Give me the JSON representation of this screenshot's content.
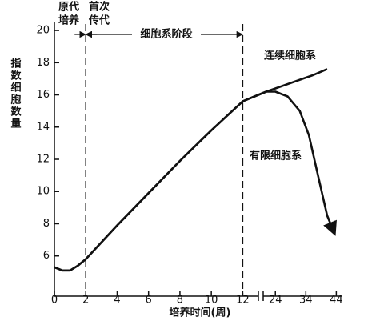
{
  "chart_data": {
    "type": "line",
    "y_label": "指数细胞数量",
    "x_label": "培养时间(周)",
    "ylim": [
      3.5,
      20.5
    ],
    "yticks": [
      6,
      8,
      10,
      12,
      14,
      16,
      18,
      20
    ],
    "x_segments": [
      {
        "xlim": [
          0,
          13
        ],
        "xticks": [
          0,
          2,
          4,
          6,
          8,
          10,
          12
        ]
      },
      {
        "xlim": [
          20,
          46
        ],
        "xticks": [
          24,
          34,
          44
        ]
      }
    ],
    "phase_lines": [
      2,
      12
    ],
    "annotations": {
      "primary_culture": [
        "原代",
        "培养"
      ],
      "first_passage": [
        "首次",
        "传代"
      ],
      "cell_line_phase": "细胞系阶段"
    },
    "series": [
      {
        "name": "连续细胞系",
        "color": "#111111",
        "x": [
          0,
          0.5,
          1,
          1.5,
          2,
          4,
          6,
          8,
          10,
          12,
          13,
          21,
          24,
          30,
          36,
          41
        ],
        "values": [
          5.3,
          5.1,
          5.1,
          5.4,
          5.8,
          7.9,
          9.9,
          11.9,
          13.8,
          15.6,
          16.0,
          16.2,
          16.4,
          16.8,
          17.2,
          17.6
        ]
      },
      {
        "name": "有限细胞系",
        "color": "#111111",
        "x": [
          0,
          0.5,
          1,
          1.5,
          2,
          4,
          6,
          8,
          10,
          12,
          13,
          21,
          24,
          28,
          32,
          35,
          38,
          41,
          43.4
        ],
        "values": [
          5.3,
          5.1,
          5.1,
          5.4,
          5.8,
          7.9,
          9.9,
          11.9,
          13.8,
          15.6,
          16.0,
          16.2,
          16.2,
          15.9,
          15.0,
          13.5,
          11.0,
          8.5,
          7.4
        ]
      }
    ]
  }
}
